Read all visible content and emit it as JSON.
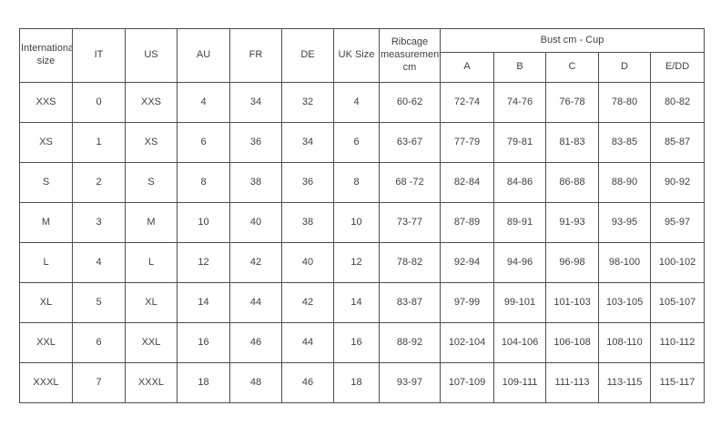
{
  "table": {
    "columns": {
      "international": "International size",
      "it": "IT",
      "us": "US",
      "au": "AU",
      "fr": "FR",
      "de": "DE",
      "uk": "UK Size",
      "ribcage": "Ribcage measurements cm"
    },
    "bust_group": {
      "label": "Bust cm - Cup",
      "cups": [
        "A",
        "B",
        "C",
        "D",
        "E/DD"
      ]
    },
    "rows": [
      {
        "international": "XXS",
        "it": "0",
        "us": "XXS",
        "au": "4",
        "fr": "34",
        "de": "32",
        "uk": "4",
        "ribcage": "60-62",
        "cups": [
          "72-74",
          "74-76",
          "76-78",
          "78-80",
          "80-82"
        ]
      },
      {
        "international": "XS",
        "it": "1",
        "us": "XS",
        "au": "6",
        "fr": "36",
        "de": "34",
        "uk": "6",
        "ribcage": "63-67",
        "cups": [
          "77-79",
          "79-81",
          "81-83",
          "83-85",
          "85-87"
        ]
      },
      {
        "international": "S",
        "it": "2",
        "us": "S",
        "au": "8",
        "fr": "38",
        "de": "36",
        "uk": "8",
        "ribcage": "68 -72",
        "cups": [
          "82-84",
          "84-86",
          "86-88",
          "88-90",
          "90-92"
        ]
      },
      {
        "international": "M",
        "it": "3",
        "us": "M",
        "au": "10",
        "fr": "40",
        "de": "38",
        "uk": "10",
        "ribcage": "73-77",
        "cups": [
          "87-89",
          "89-91",
          "91-93",
          "93-95",
          "95-97"
        ]
      },
      {
        "international": "L",
        "it": "4",
        "us": "L",
        "au": "12",
        "fr": "42",
        "de": "40",
        "uk": "12",
        "ribcage": "78-82",
        "cups": [
          "92-94",
          "94-96",
          "96-98",
          "98-100",
          "100-102"
        ]
      },
      {
        "international": "XL",
        "it": "5",
        "us": "XL",
        "au": "14",
        "fr": "44",
        "de": "42",
        "uk": "14",
        "ribcage": "83-87",
        "cups": [
          "97-99",
          "99-101",
          "101-103",
          "103-105",
          "105-107"
        ]
      },
      {
        "international": "XXL",
        "it": "6",
        "us": "XXL",
        "au": "16",
        "fr": "46",
        "de": "44",
        "uk": "16",
        "ribcage": "88-92",
        "cups": [
          "102-104",
          "104-106",
          "106-108",
          "108-110",
          "110-112"
        ]
      },
      {
        "international": "XXXL",
        "it": "7",
        "us": "XXXL",
        "au": "18",
        "fr": "48",
        "de": "46",
        "uk": "18",
        "ribcage": "93-97",
        "cups": [
          "107-109",
          "109-111",
          "111-113",
          "113-115",
          "115-117"
        ]
      }
    ]
  },
  "colors": {
    "border": "#4d4d4d",
    "text": "#3f3f3f",
    "background": "#ffffff"
  }
}
